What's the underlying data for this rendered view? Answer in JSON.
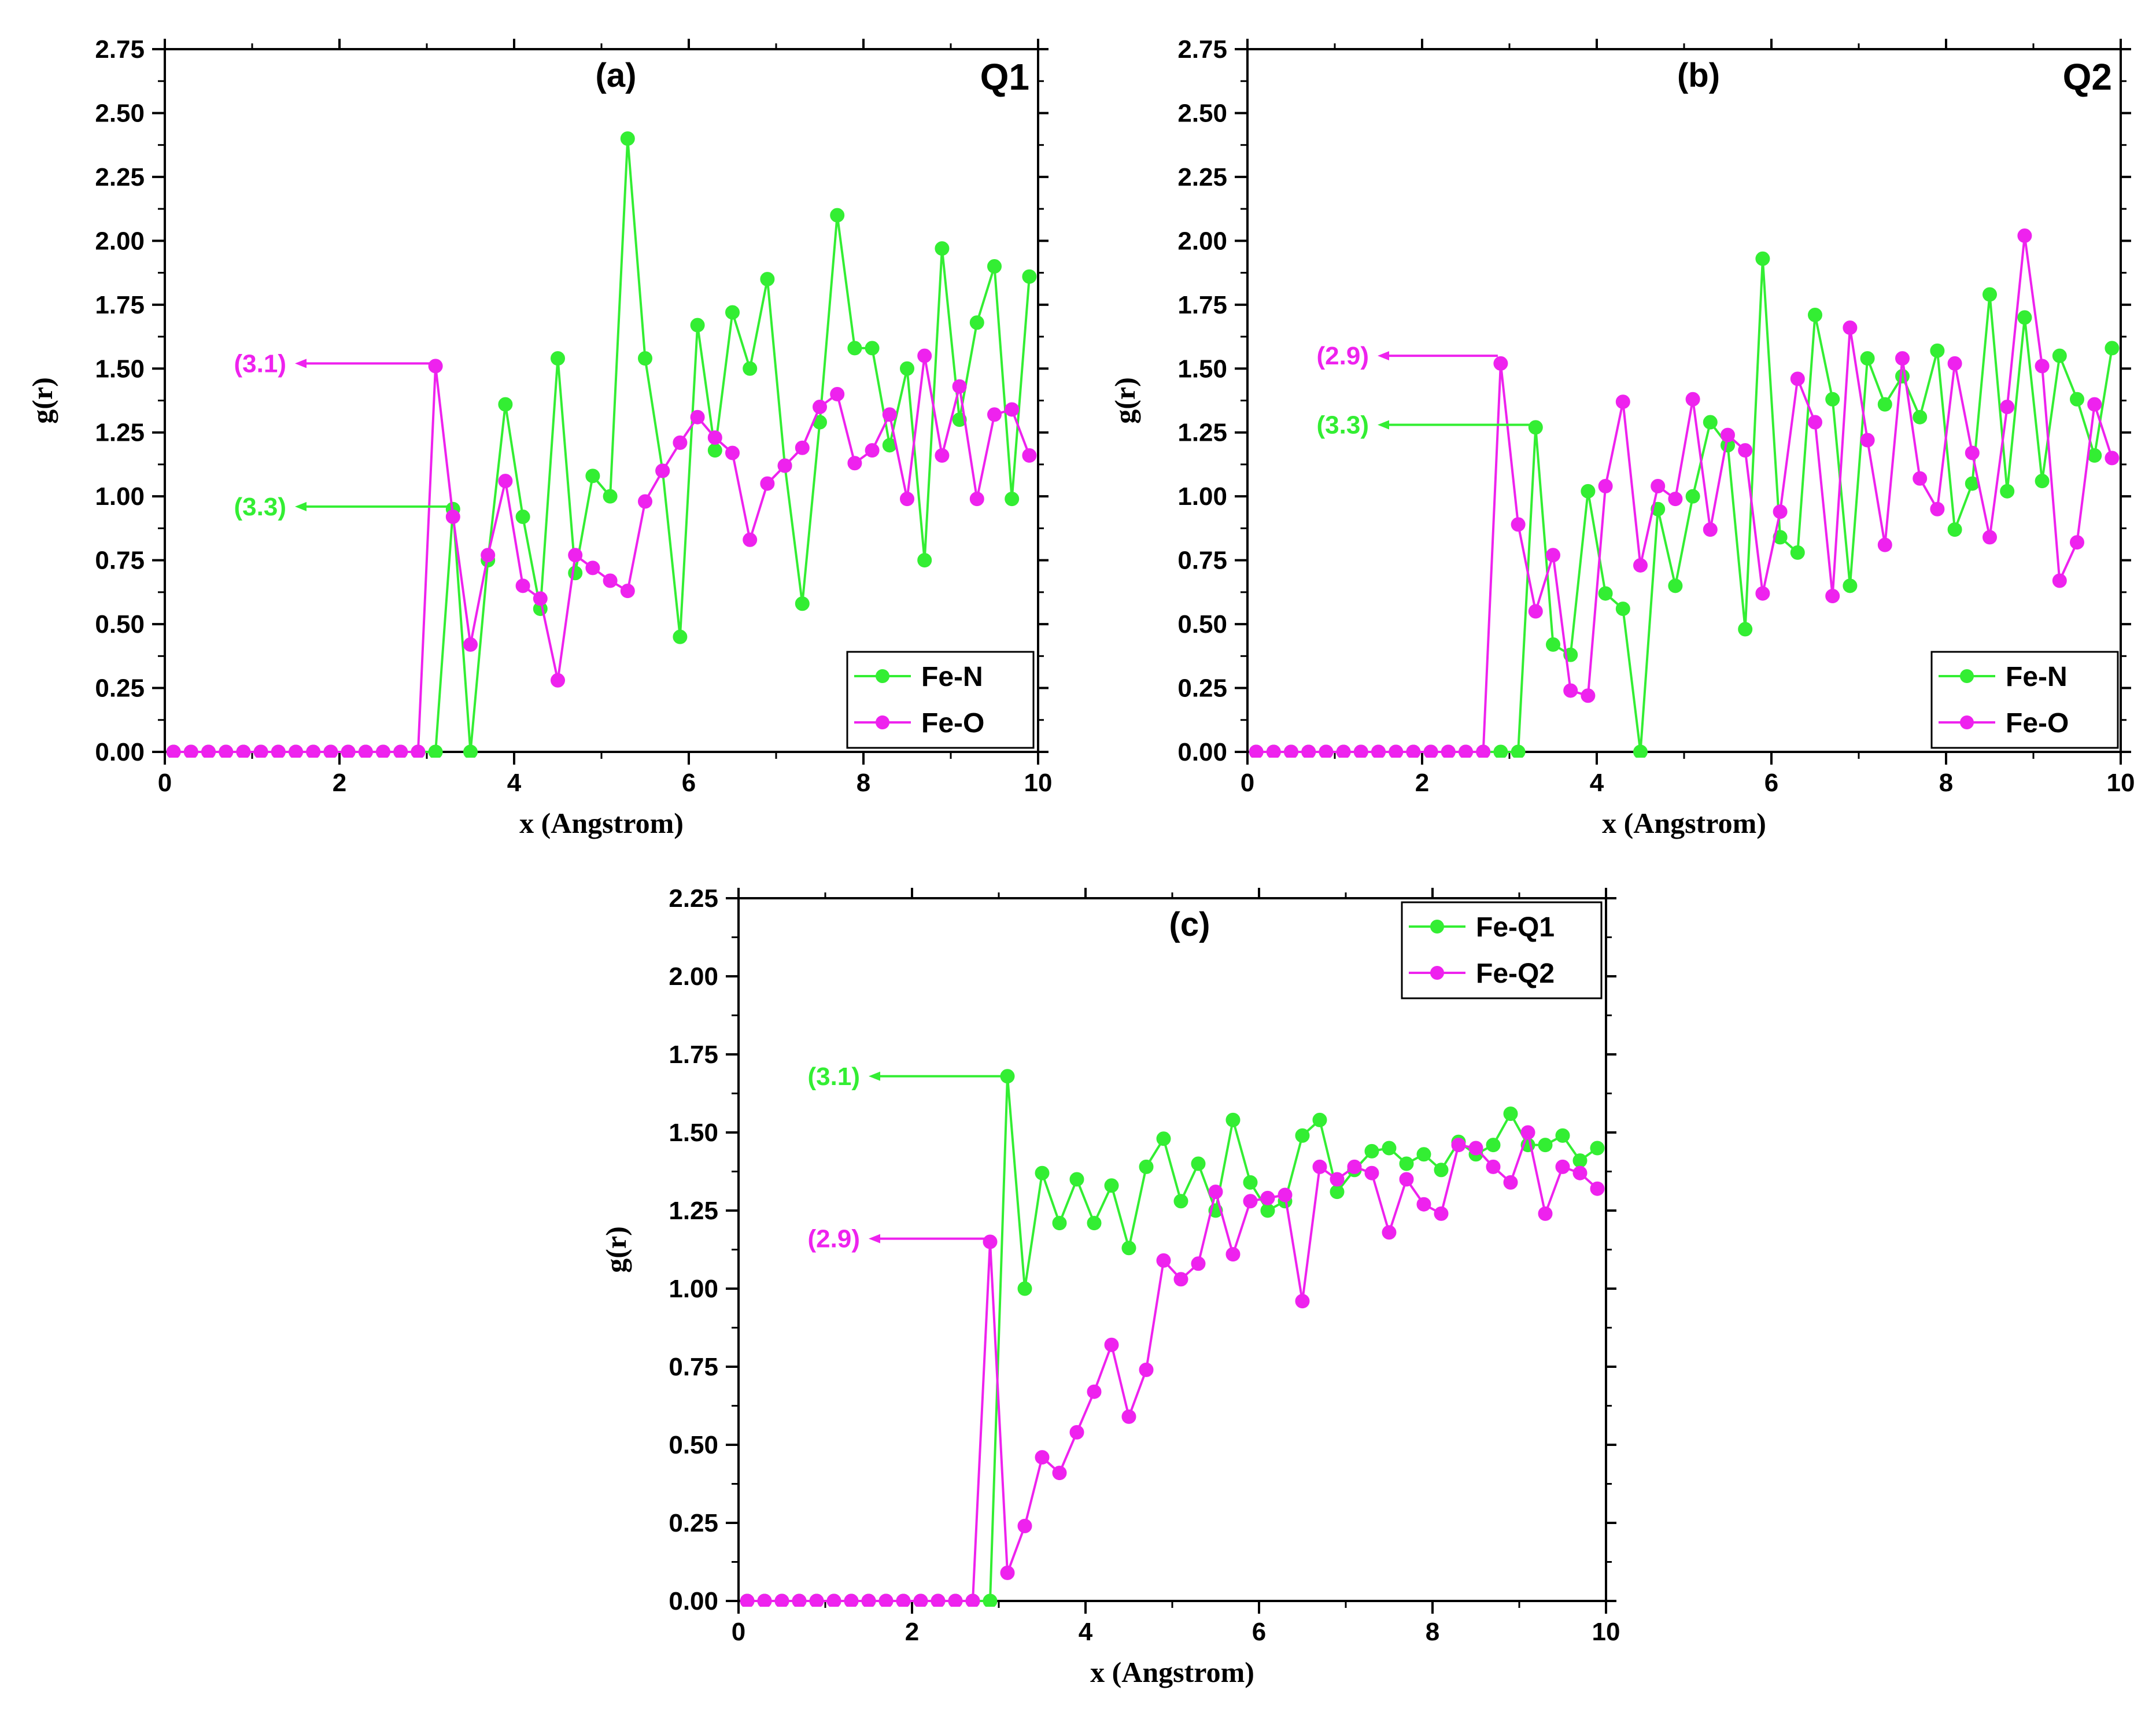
{
  "colors": {
    "green": "#33ee33",
    "magenta": "#ee22ee",
    "axis": "#000000"
  },
  "chart_data": [
    {
      "id": "a",
      "type": "line",
      "panel_label": "(a)",
      "corner_label": "Q1",
      "xlabel": "x (Angstrom)",
      "ylabel": "g(r)",
      "xlim": [
        0,
        10
      ],
      "ylim": [
        0,
        2.75
      ],
      "xticks": [
        "0",
        "2",
        "4",
        "6",
        "8",
        "10"
      ],
      "yticks": [
        "0.00",
        "0.25",
        "0.50",
        "0.75",
        "1.00",
        "1.25",
        "1.50",
        "1.75",
        "2.00",
        "2.25",
        "2.50",
        "2.75"
      ],
      "legend_position": "bottom-right",
      "x": [
        0.1,
        0.3,
        0.5,
        0.7,
        0.9,
        1.1,
        1.3,
        1.5,
        1.7,
        1.9,
        2.1,
        2.3,
        2.5,
        2.7,
        2.9,
        3.1,
        3.3,
        3.5,
        3.7,
        3.9,
        4.1,
        4.3,
        4.5,
        4.7,
        4.9,
        5.1,
        5.3,
        5.5,
        5.7,
        5.9,
        6.1,
        6.3,
        6.5,
        6.7,
        6.9,
        7.1,
        7.3,
        7.5,
        7.7,
        7.9,
        8.1,
        8.3,
        8.5,
        8.7,
        8.9,
        9.1,
        9.3,
        9.5,
        9.7,
        9.9
      ],
      "series": [
        {
          "name": "Fe-N",
          "color": "green",
          "values": [
            0,
            0,
            0,
            0,
            0,
            0,
            0,
            0,
            0,
            0,
            0,
            0,
            0,
            0,
            0,
            0,
            0.95,
            0,
            0.75,
            1.36,
            0.92,
            0.56,
            1.54,
            0.7,
            1.08,
            1.0,
            2.4,
            1.54,
            1.1,
            0.45,
            1.67,
            1.18,
            1.72,
            1.5,
            1.85,
            1.12,
            0.58,
            1.29,
            2.1,
            1.58,
            1.58,
            1.2,
            1.5,
            0.75,
            1.97,
            1.3,
            1.68,
            1.9,
            0.99,
            1.86
          ]
        },
        {
          "name": "Fe-O",
          "color": "magenta",
          "values": [
            0,
            0,
            0,
            0,
            0,
            0,
            0,
            0,
            0,
            0,
            0,
            0,
            0,
            0,
            0,
            1.51,
            0.92,
            0.42,
            0.77,
            1.06,
            0.65,
            0.6,
            0.28,
            0.77,
            0.72,
            0.67,
            0.63,
            0.98,
            1.1,
            1.21,
            1.31,
            1.23,
            1.17,
            0.83,
            1.05,
            1.12,
            1.19,
            1.35,
            1.4,
            1.13,
            1.18,
            1.32,
            0.99,
            1.55,
            1.16,
            1.43,
            0.99,
            1.32,
            1.34,
            1.16
          ]
        }
      ],
      "annotations": [
        {
          "text": "(3.1)",
          "x": 3.1,
          "y": 1.52,
          "color": "magenta"
        },
        {
          "text": "(3.3)",
          "x": 3.3,
          "y": 0.96,
          "color": "green"
        }
      ]
    },
    {
      "id": "b",
      "type": "line",
      "panel_label": "(b)",
      "corner_label": "Q2",
      "xlabel": "x (Angstrom)",
      "ylabel": "g(r)",
      "xlim": [
        0,
        10
      ],
      "ylim": [
        0,
        2.75
      ],
      "xticks": [
        "0",
        "2",
        "4",
        "6",
        "8",
        "10"
      ],
      "yticks": [
        "0.00",
        "0.25",
        "0.50",
        "0.75",
        "1.00",
        "1.25",
        "1.50",
        "1.75",
        "2.00",
        "2.25",
        "2.50",
        "2.75"
      ],
      "legend_position": "bottom-right",
      "x": [
        0.1,
        0.3,
        0.5,
        0.7,
        0.9,
        1.1,
        1.3,
        1.5,
        1.7,
        1.9,
        2.1,
        2.3,
        2.5,
        2.7,
        2.9,
        3.1,
        3.3,
        3.5,
        3.7,
        3.9,
        4.1,
        4.3,
        4.5,
        4.7,
        4.9,
        5.1,
        5.3,
        5.5,
        5.7,
        5.9,
        6.1,
        6.3,
        6.5,
        6.7,
        6.9,
        7.1,
        7.3,
        7.5,
        7.7,
        7.9,
        8.1,
        8.3,
        8.5,
        8.7,
        8.9,
        9.1,
        9.3,
        9.5,
        9.7,
        9.9
      ],
      "series": [
        {
          "name": "Fe-N",
          "color": "green",
          "values": [
            0,
            0,
            0,
            0,
            0,
            0,
            0,
            0,
            0,
            0,
            0,
            0,
            0,
            0,
            0,
            0,
            1.27,
            0.42,
            0.38,
            1.02,
            0.62,
            0.56,
            0,
            0.95,
            0.65,
            1.0,
            1.29,
            1.2,
            0.48,
            1.93,
            0.84,
            0.78,
            1.71,
            1.38,
            0.65,
            1.54,
            1.36,
            1.47,
            1.31,
            1.57,
            0.87,
            1.05,
            1.79,
            1.02,
            1.7,
            1.06,
            1.55,
            1.38,
            1.16,
            1.58
          ]
        },
        {
          "name": "Fe-O",
          "color": "magenta",
          "values": [
            0,
            0,
            0,
            0,
            0,
            0,
            0,
            0,
            0,
            0,
            0,
            0,
            0,
            0,
            1.52,
            0.89,
            0.55,
            0.77,
            0.24,
            0.22,
            1.04,
            1.37,
            0.73,
            1.04,
            0.99,
            1.38,
            0.87,
            1.24,
            1.18,
            0.62,
            0.94,
            1.46,
            1.29,
            0.61,
            1.66,
            1.22,
            0.81,
            1.54,
            1.07,
            0.95,
            1.52,
            1.17,
            0.84,
            1.35,
            2.02,
            1.51,
            0.67,
            0.82,
            1.36,
            1.15
          ]
        }
      ],
      "annotations": [
        {
          "text": "(2.9)",
          "x": 2.9,
          "y": 1.55,
          "color": "magenta"
        },
        {
          "text": "(3.3)",
          "x": 3.3,
          "y": 1.28,
          "color": "green"
        }
      ]
    },
    {
      "id": "c",
      "type": "line",
      "panel_label": "(c)",
      "corner_label": "",
      "xlabel": "x (Angstrom)",
      "ylabel": "g(r)",
      "xlim": [
        0,
        10
      ],
      "ylim": [
        0,
        2.25
      ],
      "xticks": [
        "0",
        "2",
        "4",
        "6",
        "8",
        "10"
      ],
      "yticks": [
        "0.00",
        "0.25",
        "0.50",
        "0.75",
        "1.00",
        "1.25",
        "1.50",
        "1.75",
        "2.00",
        "2.25"
      ],
      "legend_position": "top-right",
      "x": [
        0.1,
        0.3,
        0.5,
        0.7,
        0.9,
        1.1,
        1.3,
        1.5,
        1.7,
        1.9,
        2.1,
        2.3,
        2.5,
        2.7,
        2.9,
        3.1,
        3.3,
        3.5,
        3.7,
        3.9,
        4.1,
        4.3,
        4.5,
        4.7,
        4.9,
        5.1,
        5.3,
        5.5,
        5.7,
        5.9,
        6.1,
        6.3,
        6.5,
        6.7,
        6.9,
        7.1,
        7.3,
        7.5,
        7.7,
        7.9,
        8.1,
        8.3,
        8.5,
        8.7,
        8.9,
        9.1,
        9.3,
        9.5,
        9.7,
        9.9
      ],
      "series": [
        {
          "name": "Fe-Q1",
          "color": "green",
          "values": [
            0,
            0,
            0,
            0,
            0,
            0,
            0,
            0,
            0,
            0,
            0,
            0,
            0,
            0,
            0,
            1.68,
            1.0,
            1.37,
            1.21,
            1.35,
            1.21,
            1.33,
            1.13,
            1.39,
            1.48,
            1.28,
            1.4,
            1.25,
            1.54,
            1.34,
            1.25,
            1.28,
            1.49,
            1.54,
            1.31,
            1.38,
            1.44,
            1.45,
            1.4,
            1.43,
            1.38,
            1.47,
            1.43,
            1.46,
            1.56,
            1.46,
            1.46,
            1.49,
            1.41,
            1.45
          ]
        },
        {
          "name": "Fe-Q2",
          "color": "magenta",
          "values": [
            0,
            0,
            0,
            0,
            0,
            0,
            0,
            0,
            0,
            0,
            0,
            0,
            0,
            0,
            1.15,
            0.09,
            0.24,
            0.46,
            0.41,
            0.54,
            0.67,
            0.82,
            0.59,
            0.74,
            1.09,
            1.03,
            1.08,
            1.31,
            1.11,
            1.28,
            1.29,
            1.3,
            0.96,
            1.39,
            1.35,
            1.39,
            1.37,
            1.18,
            1.35,
            1.27,
            1.24,
            1.46,
            1.45,
            1.39,
            1.34,
            1.5,
            1.24,
            1.39,
            1.37,
            1.32
          ]
        }
      ],
      "annotations": [
        {
          "text": "(3.1)",
          "x": 3.1,
          "y": 1.68,
          "color": "green"
        },
        {
          "text": "(2.9)",
          "x": 2.9,
          "y": 1.16,
          "color": "magenta"
        }
      ]
    }
  ]
}
